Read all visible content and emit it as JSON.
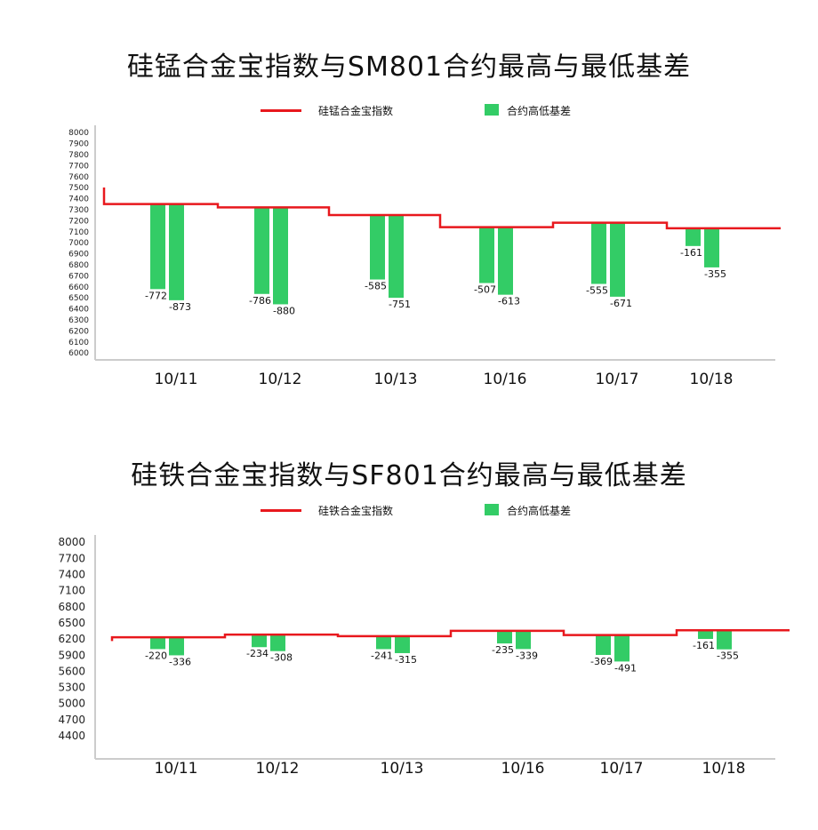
{
  "chart_data": [
    {
      "type": "bar",
      "title": "硅锰合金宝指数与SM801合约最高与最低基差",
      "legend": {
        "line_label": "硅锰合金宝指数",
        "bar_label": "合约高低基差",
        "position": "top-center"
      },
      "categories": [
        "10/11",
        "10/12",
        "10/13",
        "10/16",
        "10/17",
        "10/18"
      ],
      "y_ticks": [
        "8000",
        "7900",
        "7800",
        "7700",
        "7600",
        "7500",
        "7400",
        "7300",
        "7200",
        "7100",
        "7000",
        "6900",
        "6800",
        "6700",
        "6600",
        "6500",
        "6400",
        "6300",
        "6200",
        "6100",
        "6000"
      ],
      "ylim": [
        6000,
        8000
      ],
      "grid": false,
      "index_values": [
        7350,
        7320,
        7250,
        7140,
        7180,
        7130
      ],
      "index_start": 7500,
      "series": [
        {
          "values": [
            -772,
            -786,
            -585,
            -507,
            -555,
            -161
          ],
          "labels": [
            "-772",
            "-786",
            "-585",
            "-507",
            "-555",
            "-161"
          ]
        },
        {
          "values": [
            -873,
            -880,
            -751,
            -613,
            -671,
            -355
          ],
          "labels": [
            "-873",
            "-880",
            "-751",
            "-613",
            "-671",
            "-355"
          ]
        }
      ],
      "colors": {
        "line": "#e8181d",
        "bar": "#33cc66",
        "axis": "#cccccc"
      }
    },
    {
      "type": "bar",
      "title": "硅铁合金宝指数与SF801合约最高与最低基差",
      "legend": {
        "line_label": "硅铁合金宝指数",
        "bar_label": "合约高低基差",
        "position": "top-center"
      },
      "categories": [
        "10/11",
        "10/12",
        "10/13",
        "10/16",
        "10/17",
        "10/18"
      ],
      "y_ticks": [
        "8000",
        "7700",
        "7400",
        "7100",
        "6800",
        "6500",
        "6200",
        "5900",
        "5600",
        "5300",
        "5000",
        "4700",
        "4400"
      ],
      "ylim": [
        4100,
        8000
      ],
      "grid": false,
      "index_values": [
        6230,
        6280,
        6250,
        6350,
        6270,
        6360
      ],
      "index_start": 6160,
      "series": [
        {
          "values": [
            -220,
            -234,
            -241,
            -235,
            -369,
            -161
          ],
          "labels": [
            "-220",
            "-234",
            "-241",
            "-235",
            "-369",
            "-161"
          ]
        },
        {
          "values": [
            -336,
            -308,
            -315,
            -339,
            -491,
            -355
          ],
          "labels": [
            "-336",
            "-308",
            "-315",
            "-339",
            "-491",
            "-355"
          ]
        }
      ],
      "colors": {
        "line": "#e8181d",
        "bar": "#33cc66",
        "axis": "#cccccc"
      }
    }
  ]
}
